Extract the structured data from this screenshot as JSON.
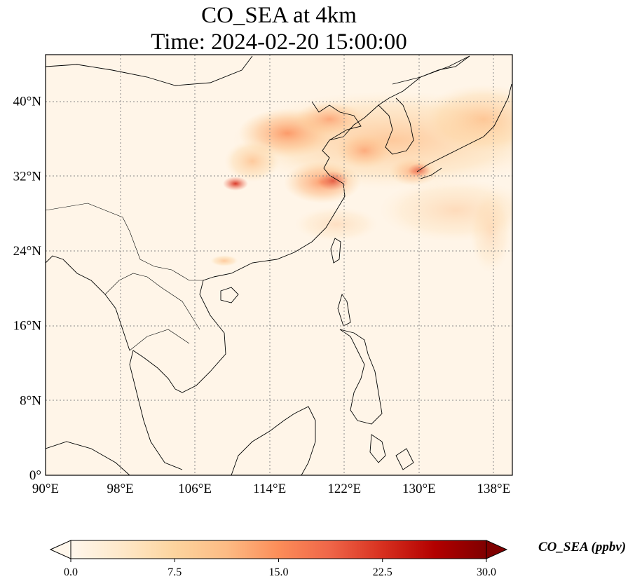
{
  "title": "CO_SEA at 4km",
  "subtitle": "Time: 2024-02-20 15:00:00",
  "map": {
    "lon_range": [
      90,
      140
    ],
    "lat_range": [
      0,
      45
    ],
    "lon_ticks": [
      "90°E",
      "98°E",
      "106°E",
      "114°E",
      "122°E",
      "130°E",
      "138°E"
    ],
    "lat_ticks": [
      "0°",
      "8°N",
      "16°N",
      "24°N",
      "32°N",
      "40°N"
    ],
    "lon_tick_values": [
      90,
      98,
      106,
      114,
      122,
      130,
      138
    ],
    "lat_tick_values": [
      0,
      8,
      16,
      24,
      32,
      40
    ],
    "gridlines": true,
    "coastlines": true
  },
  "colorbar": {
    "label": "CO_SEA (ppbv)",
    "ticks": [
      "0.0",
      "7.5",
      "15.0",
      "22.5",
      "30.0"
    ],
    "tick_values": [
      0,
      7.5,
      15,
      22.5,
      30
    ],
    "range": [
      0,
      30
    ],
    "extend": "both",
    "colormap": "OrRd",
    "colors": [
      "#fff7ec",
      "#fee8c8",
      "#fdd49e",
      "#fdbb84",
      "#fc8d59",
      "#ef6548",
      "#d7301f",
      "#b30000",
      "#7f0000"
    ]
  }
}
